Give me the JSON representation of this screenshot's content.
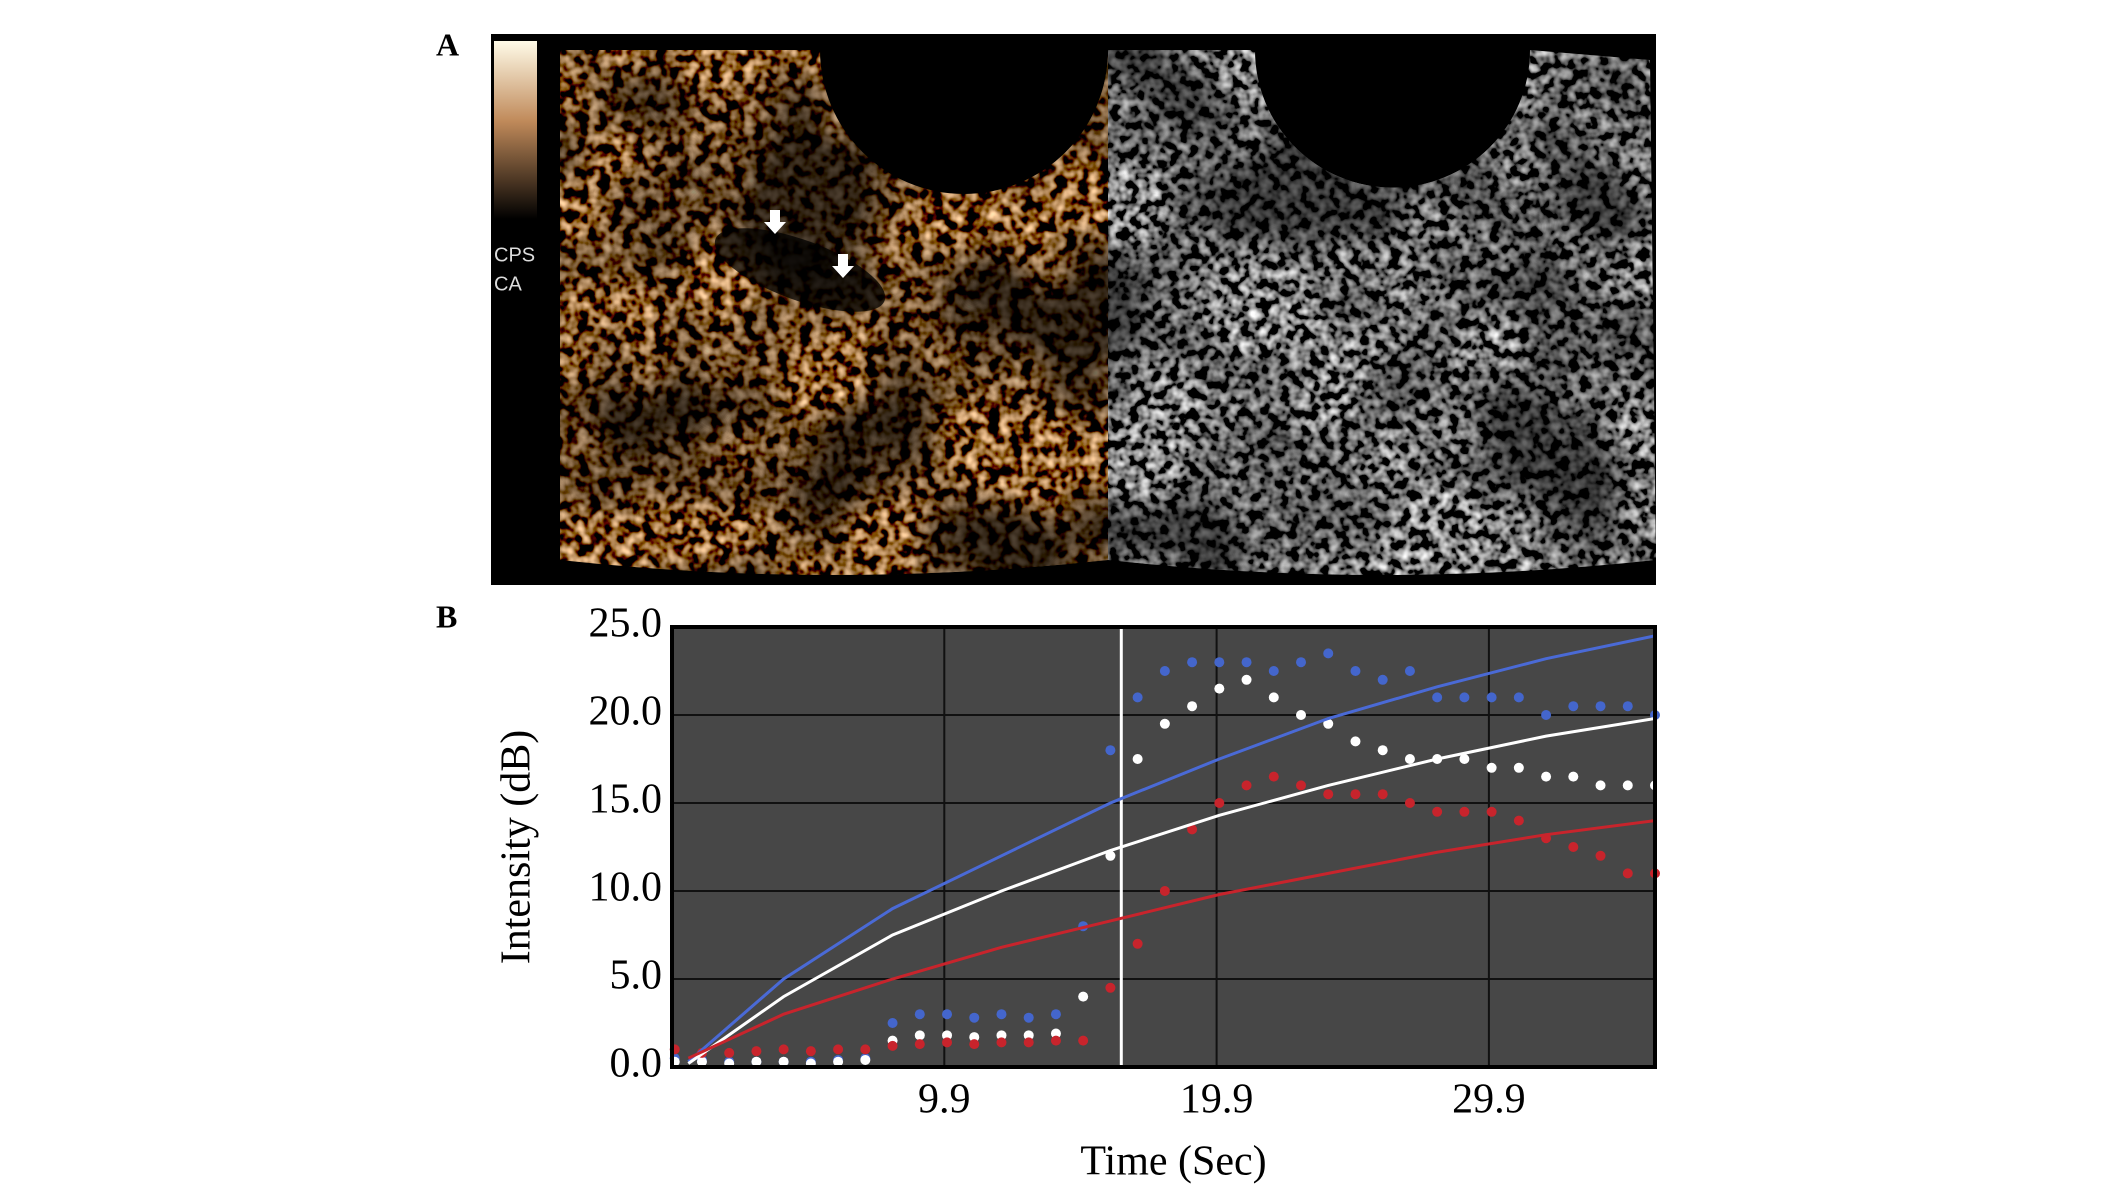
{
  "panels": {
    "a": {
      "label": "A",
      "overlay_texts": [
        "CPS",
        "CA"
      ]
    },
    "b": {
      "label": "B"
    }
  },
  "chart_data": {
    "type": "scatter",
    "xlabel": "Time (Sec)",
    "ylabel": "Intensity (dB)",
    "xlim": [
      -0.1,
      36.0
    ],
    "ylim": [
      0,
      25
    ],
    "xticks": [
      9.9,
      19.9,
      29.9
    ],
    "yticks": [
      {
        "value": 0,
        "label": "0.0"
      },
      {
        "value": 5,
        "label": "5.0"
      },
      {
        "value": 10,
        "label": "10.0"
      },
      {
        "value": 15,
        "label": "15.0"
      },
      {
        "value": 20,
        "label": "20.0"
      },
      {
        "value": 25,
        "label": "25.0"
      }
    ],
    "grid": true,
    "marker_time": 16.4,
    "series": [
      {
        "style": "points",
        "color": "#4466cc",
        "x": [
          0,
          1,
          2,
          3,
          4,
          5,
          6,
          7,
          8,
          9,
          10,
          11,
          12,
          13,
          14,
          15,
          16,
          17,
          18,
          19,
          20,
          21,
          22,
          23,
          24,
          25,
          26,
          27,
          28,
          29,
          30,
          31,
          32,
          33,
          34,
          35,
          36
        ],
        "values": [
          0.5,
          0.4,
          0.3,
          0.3,
          0.3,
          0.3,
          0.4,
          0.5,
          2.5,
          3,
          3,
          2.8,
          3,
          2.8,
          3,
          8,
          18,
          21,
          22.5,
          23,
          23,
          23,
          22.5,
          23,
          23.5,
          22.5,
          22,
          22.5,
          21,
          21,
          21,
          21,
          20,
          20.5,
          20.5,
          20.5,
          20
        ]
      },
      {
        "style": "points",
        "color": "#ffffff",
        "x": [
          0,
          1,
          2,
          3,
          4,
          5,
          6,
          7,
          8,
          9,
          10,
          11,
          12,
          13,
          14,
          15,
          16,
          17,
          18,
          19,
          20,
          21,
          22,
          23,
          24,
          25,
          26,
          27,
          28,
          29,
          30,
          31,
          32,
          33,
          34,
          35,
          36
        ],
        "values": [
          0.3,
          0.3,
          0.2,
          0.3,
          0.3,
          0.2,
          0.3,
          0.4,
          1.5,
          1.8,
          1.8,
          1.7,
          1.8,
          1.8,
          1.9,
          4,
          12,
          17.5,
          19.5,
          20.5,
          21.5,
          22,
          21,
          20,
          19.5,
          18.5,
          18,
          17.5,
          17.5,
          17.5,
          17,
          17,
          16.5,
          16.5,
          16,
          16,
          16
        ]
      },
      {
        "style": "points",
        "color": "#c8242c",
        "x": [
          0,
          1,
          2,
          3,
          4,
          5,
          6,
          7,
          8,
          9,
          10,
          11,
          12,
          13,
          14,
          15,
          16,
          17,
          18,
          19,
          20,
          21,
          22,
          23,
          24,
          25,
          26,
          27,
          28,
          29,
          30,
          31,
          32,
          33,
          34,
          35,
          36
        ],
        "values": [
          1,
          0.8,
          0.8,
          0.9,
          1,
          0.9,
          1,
          1,
          1.2,
          1.3,
          1.4,
          1.3,
          1.4,
          1.4,
          1.5,
          1.5,
          4.5,
          7,
          10,
          13.5,
          15,
          16,
          16.5,
          16,
          15.5,
          15.5,
          15.5,
          15,
          14.5,
          14.5,
          14.5,
          14,
          13,
          12.5,
          12,
          11,
          11
        ]
      },
      {
        "style": "line",
        "color": "#4a6ad6",
        "x": [
          0.5,
          4,
          8,
          12,
          16,
          20,
          24,
          28,
          32,
          36
        ],
        "values": [
          0.3,
          5,
          9,
          12,
          15,
          17.5,
          19.8,
          21.6,
          23.2,
          24.5
        ]
      },
      {
        "style": "line",
        "color": "#ffffff",
        "x": [
          0.5,
          4,
          8,
          12,
          16,
          20,
          24,
          28,
          32,
          36
        ],
        "values": [
          0.2,
          4,
          7.5,
          10,
          12.3,
          14.3,
          16,
          17.5,
          18.8,
          19.8
        ]
      },
      {
        "style": "line",
        "color": "#c8242c",
        "x": [
          0.5,
          4,
          8,
          12,
          16,
          20,
          24,
          28,
          32,
          36
        ],
        "values": [
          0.5,
          3,
          5,
          6.8,
          8.3,
          9.8,
          11,
          12.2,
          13.2,
          14
        ]
      }
    ]
  }
}
